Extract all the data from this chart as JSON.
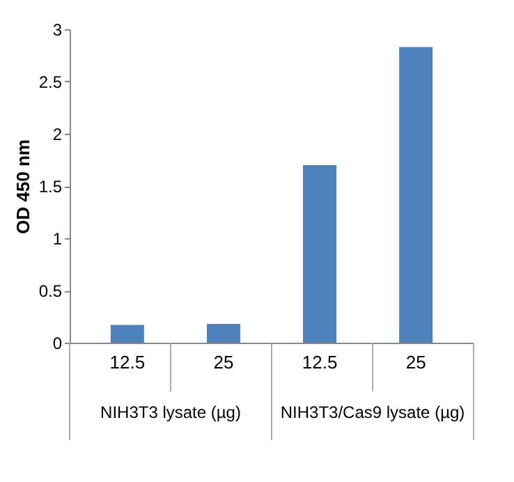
{
  "chart_data": {
    "type": "bar",
    "ylabel": "OD 450 nm",
    "categories": [
      "12.5",
      "25",
      "12.5",
      "25"
    ],
    "values": [
      0.17,
      0.18,
      1.7,
      2.83
    ],
    "color": "#4f81bd",
    "ylim": [
      0,
      3
    ],
    "yticks": [
      0,
      0.5,
      1,
      1.5,
      2,
      2.5,
      3
    ],
    "grid": false,
    "annotations": [
      "NIH3T3 lysate (µg)",
      "NIH3T3/Cas9 lysate (µg)"
    ]
  }
}
